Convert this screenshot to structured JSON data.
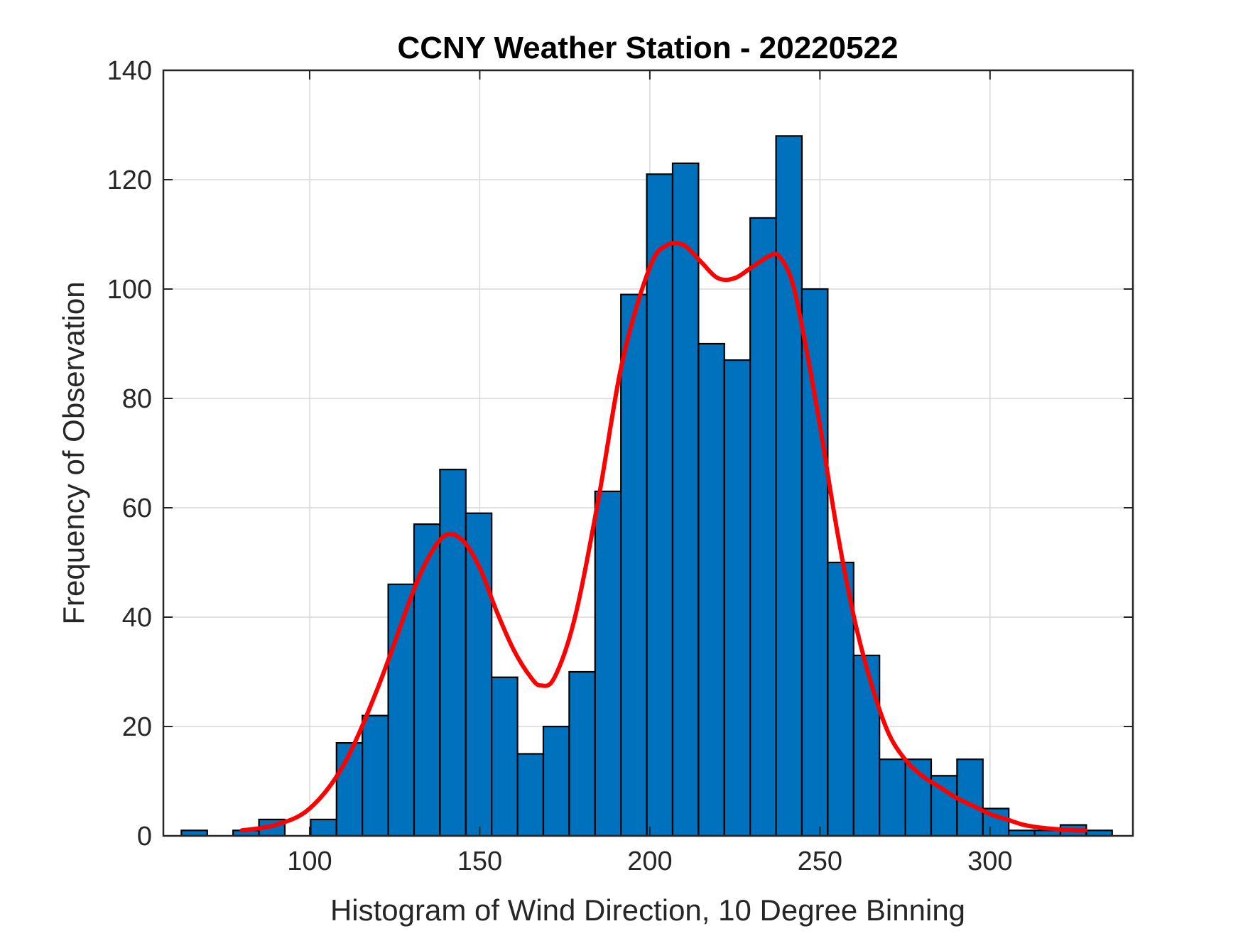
{
  "chart_data": {
    "type": "bar",
    "title": "CCNY Weather Station - 20220522",
    "xlabel": "Histogram of Wind Direction, 10 Degree Binning",
    "ylabel": "Frequency of Observation",
    "xlim": [
      57,
      342
    ],
    "ylim": [
      0,
      140
    ],
    "xticks": [
      100,
      150,
      200,
      250,
      300
    ],
    "yticks": [
      0,
      20,
      40,
      60,
      80,
      100,
      120,
      140
    ],
    "grid": true,
    "bin_width": 7.6,
    "bins": [
      {
        "x0": 62.3,
        "value": 1
      },
      {
        "x0": 77.5,
        "value": 1
      },
      {
        "x0": 85.1,
        "value": 3
      },
      {
        "x0": 100.3,
        "value": 3
      },
      {
        "x0": 107.9,
        "value": 17
      },
      {
        "x0": 115.5,
        "value": 22
      },
      {
        "x0": 123.1,
        "value": 46
      },
      {
        "x0": 130.7,
        "value": 57
      },
      {
        "x0": 138.3,
        "value": 67
      },
      {
        "x0": 145.9,
        "value": 59
      },
      {
        "x0": 153.5,
        "value": 29
      },
      {
        "x0": 161.1,
        "value": 15
      },
      {
        "x0": 168.7,
        "value": 20
      },
      {
        "x0": 176.3,
        "value": 30
      },
      {
        "x0": 183.9,
        "value": 63
      },
      {
        "x0": 191.5,
        "value": 99
      },
      {
        "x0": 199.1,
        "value": 121
      },
      {
        "x0": 206.7,
        "value": 123
      },
      {
        "x0": 214.3,
        "value": 90
      },
      {
        "x0": 221.9,
        "value": 87
      },
      {
        "x0": 229.5,
        "value": 113
      },
      {
        "x0": 237.1,
        "value": 128
      },
      {
        "x0": 244.7,
        "value": 100
      },
      {
        "x0": 252.3,
        "value": 50
      },
      {
        "x0": 259.9,
        "value": 33
      },
      {
        "x0": 267.5,
        "value": 14
      },
      {
        "x0": 275.1,
        "value": 14
      },
      {
        "x0": 282.7,
        "value": 11
      },
      {
        "x0": 290.3,
        "value": 14
      },
      {
        "x0": 297.9,
        "value": 5
      },
      {
        "x0": 305.5,
        "value": 1
      },
      {
        "x0": 313.1,
        "value": 1
      },
      {
        "x0": 320.7,
        "value": 2
      },
      {
        "x0": 328.3,
        "value": 1
      }
    ],
    "density_curve": {
      "x": [
        80,
        90,
        100,
        110,
        120,
        130,
        135,
        140,
        145,
        150,
        155,
        160,
        165,
        168,
        172,
        178,
        185,
        192,
        200,
        205,
        210,
        215,
        220,
        225,
        230,
        235,
        238,
        242,
        246,
        250,
        255,
        260,
        265,
        270,
        275,
        280,
        285,
        290,
        295,
        300,
        305,
        310,
        315,
        320,
        325,
        328
      ],
      "y": [
        1,
        2,
        5,
        13,
        27,
        44,
        51,
        55,
        54,
        49,
        41,
        34,
        29,
        27.5,
        29,
        40,
        62,
        87,
        104,
        108,
        108,
        105,
        102,
        102,
        104,
        106,
        106,
        101,
        89,
        75,
        56,
        40,
        28,
        19,
        14,
        11,
        9,
        7,
        5.5,
        4,
        3,
        2,
        1.5,
        1.2,
        1,
        1
      ]
    },
    "colors": {
      "bar_fill": "#0072bd",
      "bar_edge": "#000000",
      "curve": "#ff0000",
      "grid": "#d9d9d9",
      "axes": "#262626"
    }
  }
}
